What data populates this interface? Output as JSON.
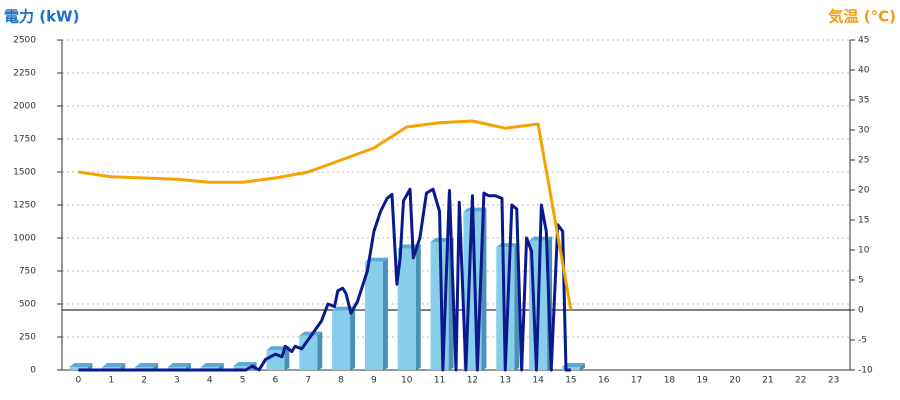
{
  "chart_data": {
    "type": "bar",
    "y_label": "電力 (kW)",
    "y2_label": "気温 (°C)",
    "categories": [
      "0",
      "1",
      "2",
      "3",
      "4",
      "5",
      "6",
      "7",
      "8",
      "9",
      "10",
      "11",
      "12",
      "13",
      "14",
      "15",
      "16",
      "17",
      "18",
      "19",
      "20",
      "21",
      "22",
      "23"
    ],
    "series": [
      {
        "type": "bar",
        "color": "#87ceeb",
        "values": [
          0,
          0,
          0,
          0,
          0,
          30,
          150,
          260,
          450,
          820,
          920,
          970,
          1200,
          930,
          980,
          0,
          null,
          null,
          null,
          null,
          null,
          null,
          null,
          null
        ]
      },
      {
        "type": "line",
        "color": "#0a1a8c",
        "x": [
          0,
          4.9,
          5.1,
          5.3,
          5.5,
          5.7,
          6,
          6.2,
          6.3,
          6.5,
          6.6,
          6.8,
          7,
          7.2,
          7.4,
          7.6,
          7.8,
          7.9,
          8.05,
          8.15,
          8.3,
          8.5,
          8.8,
          9,
          9.2,
          9.4,
          9.55,
          9.7,
          9.8,
          9.9,
          10.1,
          10.2,
          10.4,
          10.6,
          10.8,
          11,
          11.1,
          11.3,
          11.5,
          11.6,
          11.8,
          12,
          12.15,
          12.35,
          12.5,
          12.7,
          12.9,
          13,
          13.2,
          13.35,
          13.5,
          13.65,
          13.8,
          13.95,
          14.1,
          14.25,
          14.4,
          14.6,
          14.75,
          14.85,
          15
        ],
        "values": [
          0,
          0,
          0,
          30,
          0,
          80,
          120,
          100,
          180,
          140,
          180,
          160,
          230,
          300,
          370,
          500,
          480,
          600,
          620,
          580,
          430,
          520,
          750,
          1050,
          1200,
          1300,
          1330,
          650,
          850,
          1280,
          1370,
          850,
          1000,
          1340,
          1370,
          1200,
          0,
          1360,
          0,
          1270,
          0,
          1320,
          0,
          1340,
          1320,
          1320,
          1300,
          0,
          1250,
          1220,
          0,
          1000,
          900,
          0,
          1250,
          1050,
          0,
          1100,
          1050,
          0,
          0
        ]
      },
      {
        "type": "line",
        "axis": "y2",
        "color": "#f5a300",
        "values": [
          23,
          22.2,
          22,
          21.8,
          21.3,
          21.3,
          22,
          23,
          25,
          27,
          30.5,
          31.2,
          31.5,
          30.3,
          31,
          0,
          null,
          null,
          null,
          null,
          null,
          null,
          null,
          null
        ]
      }
    ],
    "ylim": [
      0,
      2500
    ],
    "yticks": [
      0,
      250,
      500,
      750,
      1000,
      1250,
      1500,
      1750,
      2000,
      2250,
      2500
    ],
    "y2lim": [
      -10,
      45
    ],
    "y2ticks": [
      -10,
      -5,
      0,
      5,
      10,
      15,
      20,
      25,
      30,
      35,
      40,
      45
    ],
    "grid": true
  }
}
